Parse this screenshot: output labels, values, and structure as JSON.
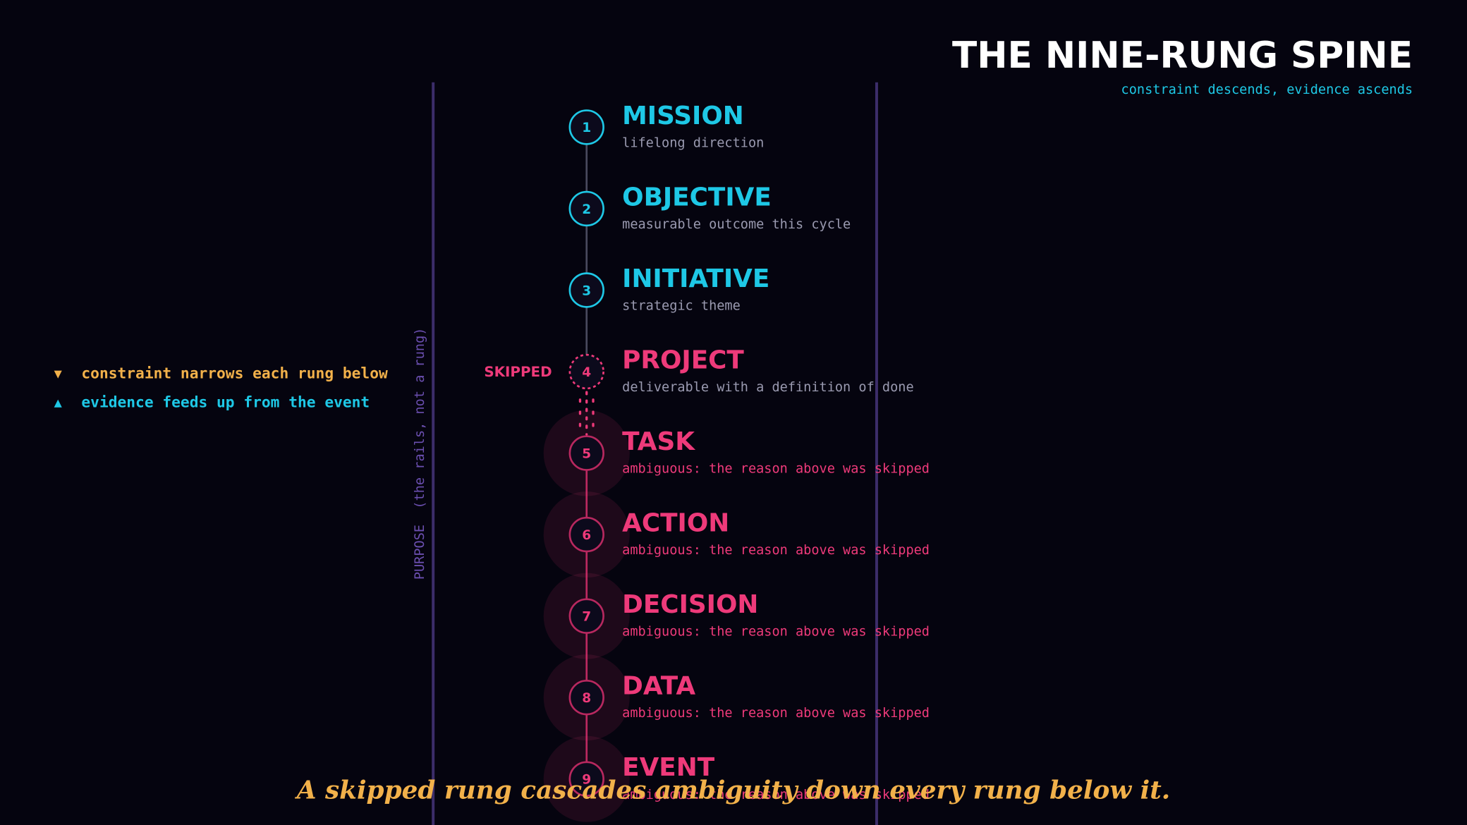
{
  "header": {
    "title": "THE NINE-RUNG SPINE",
    "subtitle": "constraint descends, evidence ascends"
  },
  "legend": [
    {
      "marker": "▼",
      "text": "constraint narrows each rung below",
      "color": "#f2b14a"
    },
    {
      "marker": "▲",
      "text": "evidence feeds up from the event",
      "color": "#1ec8e6"
    }
  ],
  "rail_label": "PURPOSE  (the rails, not a rung)",
  "rungs": [
    {
      "number": "1",
      "name": "MISSION",
      "description": "lifelong direction"
    },
    {
      "number": "2",
      "name": "OBJECTIVE",
      "description": "measurable outcome this cycle"
    },
    {
      "number": "3",
      "name": "INITIATIVE",
      "description": "strategic theme"
    },
    {
      "number": "4",
      "name": "PROJECT",
      "description": "deliverable with a definition of done",
      "tag": "SKIPPED"
    },
    {
      "number": "5",
      "name": "TASK",
      "description": "ambiguous: the reason above was skipped"
    },
    {
      "number": "6",
      "name": "ACTION",
      "description": "ambiguous: the reason above was skipped"
    },
    {
      "number": "7",
      "name": "DECISION",
      "description": "ambiguous: the reason above was skipped"
    },
    {
      "number": "8",
      "name": "DATA",
      "description": "ambiguous: the reason above was skipped"
    },
    {
      "number": "9",
      "name": "EVENT",
      "description": "ambiguous: the reason above was skipped"
    }
  ],
  "caption": "A skipped rung cascades ambiguity down every rung below it."
}
